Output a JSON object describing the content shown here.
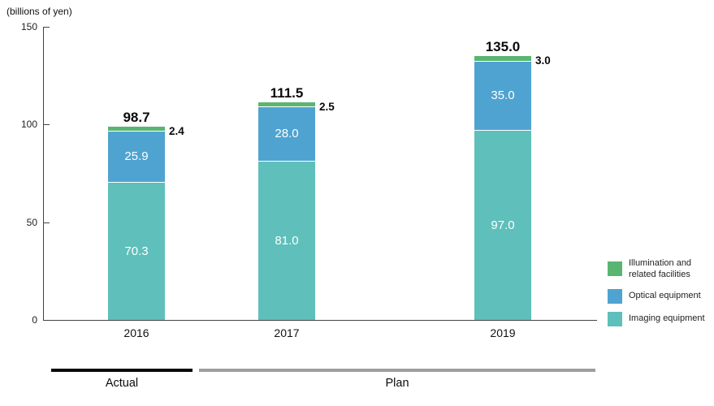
{
  "title": "(billions of yen)",
  "colors": {
    "imaging": "#5FBFBB",
    "optical": "#4FA3D0",
    "illumination": "#5AB573",
    "actual_bar": "#0a0a0a",
    "plan_bar": "#9e9e9e",
    "axis": "#444444"
  },
  "chart_data": {
    "type": "bar",
    "stacked": true,
    "title": "(billions of yen)",
    "categories": [
      "2016",
      "2017",
      "2019"
    ],
    "series": [
      {
        "name": "Imaging equipment",
        "color": "#5FBFBB",
        "values": [
          70.3,
          81.0,
          97.0
        ],
        "label_position": "inside"
      },
      {
        "name": "Optical equipment",
        "color": "#4FA3D0",
        "values": [
          25.9,
          28.0,
          35.0
        ],
        "label_position": "inside"
      },
      {
        "name": "Illumination and related facilities",
        "color": "#5AB573",
        "values": [
          2.4,
          2.5,
          3.0
        ],
        "label_position": "outside-right"
      }
    ],
    "totals": [
      98.7,
      111.5,
      135.0
    ],
    "xlabel": "",
    "ylabel": "(billions of yen)",
    "ylim": [
      0,
      150
    ],
    "yticks": [
      0,
      50,
      100,
      150
    ],
    "grid": false,
    "legend_position": "right"
  },
  "legend": {
    "items": [
      {
        "label": "Illumination and\nrelated facilities",
        "color": "#5AB573"
      },
      {
        "label": "Optical equipment",
        "color": "#4FA3D0"
      },
      {
        "label": "Imaging equipment",
        "color": "#5FBFBB"
      }
    ]
  },
  "periods": {
    "actual_label": "Actual",
    "plan_label": "Plan"
  }
}
